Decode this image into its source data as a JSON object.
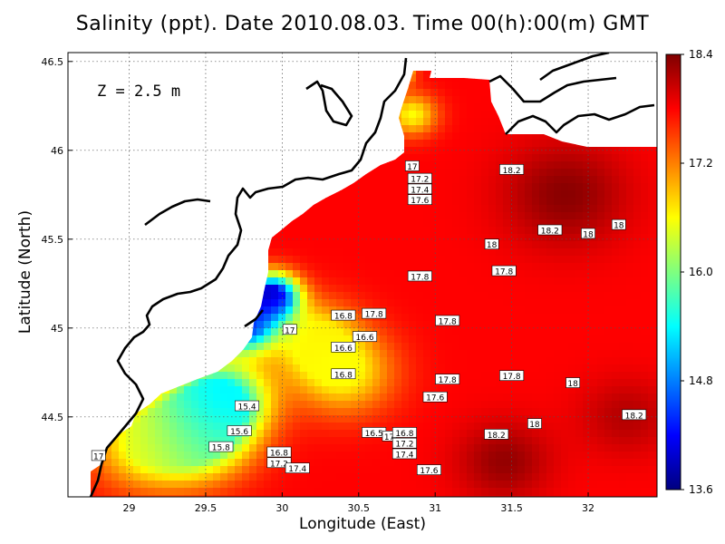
{
  "chart_data": {
    "type": "heatmap",
    "title": "Salinity (ppt). Date 2010.08.03. Time 00(h):00(m) GMT",
    "xlabel": "Longitude (East)",
    "ylabel": "Latitude (North)",
    "depth_label": "Z = 2.5 m",
    "xlim": [
      28.6,
      32.45
    ],
    "ylim": [
      44.05,
      46.55
    ],
    "x_ticks": [
      "29",
      "29.5",
      "30",
      "30.5",
      "31",
      "31.5",
      "32"
    ],
    "y_ticks": [
      "44.5",
      "45",
      "45.5",
      "46",
      "46.5"
    ],
    "grid": true,
    "colorbar": {
      "min": 13.6,
      "max": 18.4,
      "ticks": [
        "18.4",
        "17.2",
        "16.0",
        "14.8",
        "13.6"
      ],
      "colormap": [
        "#00007f",
        "#0000ff",
        "#007fff",
        "#00ffff",
        "#7fff7f",
        "#ffff00",
        "#ff7f00",
        "#ff0000",
        "#7f0000"
      ]
    },
    "contour_labels": [
      {
        "text": "17",
        "lon": 30.85,
        "lat": 45.91
      },
      {
        "text": "17.2",
        "lon": 30.9,
        "lat": 45.84
      },
      {
        "text": "17.4",
        "lon": 30.9,
        "lat": 45.78
      },
      {
        "text": "17.6",
        "lon": 30.9,
        "lat": 45.72
      },
      {
        "text": "18.2",
        "lon": 31.5,
        "lat": 45.89
      },
      {
        "text": "18.2",
        "lon": 31.75,
        "lat": 45.55
      },
      {
        "text": "18",
        "lon": 32.2,
        "lat": 45.58
      },
      {
        "text": "18",
        "lon": 32.0,
        "lat": 45.53
      },
      {
        "text": "18",
        "lon": 31.37,
        "lat": 45.47
      },
      {
        "text": "17.8",
        "lon": 31.45,
        "lat": 45.32
      },
      {
        "text": "17.8",
        "lon": 30.9,
        "lat": 45.29
      },
      {
        "text": "17.8",
        "lon": 30.6,
        "lat": 45.08
      },
      {
        "text": "17.8",
        "lon": 31.08,
        "lat": 45.04
      },
      {
        "text": "16.8",
        "lon": 30.4,
        "lat": 45.07
      },
      {
        "text": "16.6",
        "lon": 30.54,
        "lat": 44.95
      },
      {
        "text": "16.6",
        "lon": 30.4,
        "lat": 44.89
      },
      {
        "text": "17",
        "lon": 30.05,
        "lat": 44.99
      },
      {
        "text": "16.8",
        "lon": 30.4,
        "lat": 44.74
      },
      {
        "text": "17.8",
        "lon": 31.08,
        "lat": 44.71
      },
      {
        "text": "17.6",
        "lon": 31.0,
        "lat": 44.61
      },
      {
        "text": "17.8",
        "lon": 31.5,
        "lat": 44.73
      },
      {
        "text": "18",
        "lon": 31.9,
        "lat": 44.69
      },
      {
        "text": "18",
        "lon": 31.65,
        "lat": 44.46
      },
      {
        "text": "18.2",
        "lon": 31.4,
        "lat": 44.4
      },
      {
        "text": "18.2",
        "lon": 32.3,
        "lat": 44.51
      },
      {
        "text": "15.4",
        "lon": 29.77,
        "lat": 44.56
      },
      {
        "text": "15.6",
        "lon": 29.72,
        "lat": 44.42
      },
      {
        "text": "15.8",
        "lon": 29.6,
        "lat": 44.33
      },
      {
        "text": "16.5",
        "lon": 30.6,
        "lat": 44.41
      },
      {
        "text": "17",
        "lon": 30.7,
        "lat": 44.39
      },
      {
        "text": "16.8",
        "lon": 30.8,
        "lat": 44.41
      },
      {
        "text": "17.2",
        "lon": 30.8,
        "lat": 44.35
      },
      {
        "text": "17.4",
        "lon": 30.8,
        "lat": 44.29
      },
      {
        "text": "16.8",
        "lon": 29.98,
        "lat": 44.3
      },
      {
        "text": "17.2",
        "lon": 29.98,
        "lat": 44.24
      },
      {
        "text": "17.4",
        "lon": 30.1,
        "lat": 44.21
      },
      {
        "text": "17.6",
        "lon": 30.96,
        "lat": 44.2
      },
      {
        "text": "17",
        "lon": 28.8,
        "lat": 44.28
      }
    ],
    "salinity_field": {
      "background": 17.8,
      "features": [
        {
          "name": "danube-plume-core",
          "lon": 29.93,
          "lat": 45.18,
          "value": 13.8,
          "radius": 0.17
        },
        {
          "name": "danube-mouth",
          "lon": 29.75,
          "lat": 45.02,
          "value": 14.3,
          "radius": 0.2
        },
        {
          "name": "south-plume",
          "lon": 29.6,
          "lat": 44.6,
          "value": 15.3,
          "radius": 0.3
        },
        {
          "name": "south-plume-2",
          "lon": 29.45,
          "lat": 44.4,
          "value": 15.8,
          "radius": 0.33
        },
        {
          "name": "coastal-strip",
          "lon": 29.1,
          "lat": 44.35,
          "value": 16.6,
          "radius": 0.35
        },
        {
          "name": "central-low",
          "lon": 30.4,
          "lat": 44.75,
          "value": 16.6,
          "radius": 0.32
        },
        {
          "name": "central-low-2",
          "lon": 30.2,
          "lat": 44.95,
          "value": 16.7,
          "radius": 0.28
        },
        {
          "name": "dnieper-lagoon",
          "lon": 30.72,
          "lat": 46.45,
          "value": 15.2,
          "radius": 0.11
        },
        {
          "name": "dnieper-strip",
          "lon": 30.85,
          "lat": 46.2,
          "value": 16.6,
          "radius": 0.16
        },
        {
          "name": "ne-high",
          "lon": 31.85,
          "lat": 45.75,
          "value": 18.35,
          "radius": 0.4
        },
        {
          "name": "se-high",
          "lon": 31.45,
          "lat": 44.25,
          "value": 18.3,
          "radius": 0.3
        },
        {
          "name": "e-high",
          "lon": 32.25,
          "lat": 44.5,
          "value": 18.15,
          "radius": 0.3
        }
      ]
    }
  }
}
